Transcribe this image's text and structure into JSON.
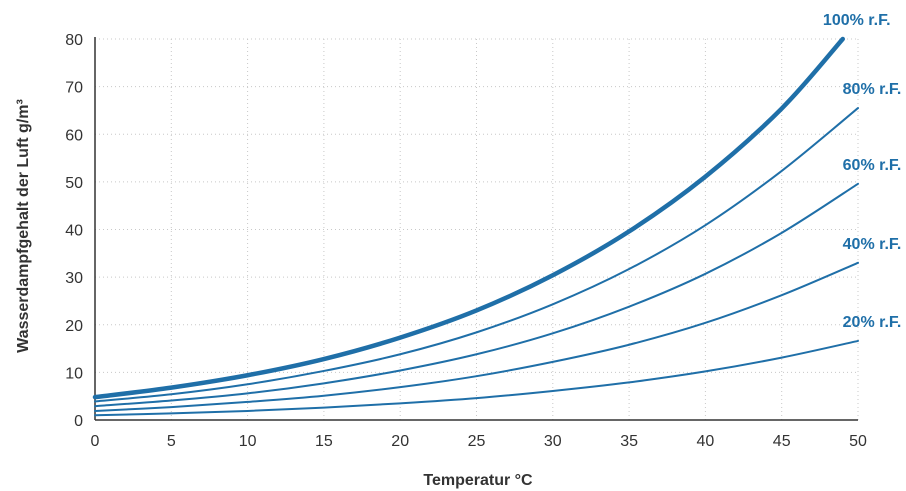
{
  "chart_data": {
    "type": "line",
    "title": "",
    "xlabel": "Temperatur °C",
    "ylabel": "Wasserdampfgehalt der Luft g/m³",
    "xlim": [
      0,
      50
    ],
    "ylim": [
      0,
      80
    ],
    "xticks": [
      0,
      5,
      10,
      15,
      20,
      25,
      30,
      35,
      40,
      45,
      50
    ],
    "yticks": [
      0,
      10,
      20,
      30,
      40,
      50,
      60,
      70,
      80
    ],
    "grid": true,
    "line_color": "#1f6fa8",
    "x": [
      0,
      5,
      10,
      15,
      20,
      25,
      30,
      35,
      40,
      45,
      49,
      50
    ],
    "series": [
      {
        "name": "100% r.F.",
        "values": [
          4.8,
          6.8,
          9.4,
          12.8,
          17.3,
          23.0,
          30.4,
          39.6,
          51.1,
          65.4,
          80.0,
          null
        ]
      },
      {
        "name": "80% r.F.",
        "values": [
          3.9,
          5.4,
          7.5,
          10.3,
          13.8,
          18.4,
          24.3,
          31.7,
          40.9,
          52.3,
          null,
          65.5
        ]
      },
      {
        "name": "60% r.F.",
        "values": [
          2.9,
          4.1,
          5.6,
          7.7,
          10.4,
          13.8,
          18.2,
          23.8,
          30.7,
          39.3,
          null,
          49.6
        ]
      },
      {
        "name": "40% r.F.",
        "values": [
          1.9,
          2.7,
          3.8,
          5.1,
          6.9,
          9.2,
          12.2,
          15.8,
          20.4,
          26.2,
          null,
          33.0
        ]
      },
      {
        "name": "20% r.F.",
        "values": [
          1.0,
          1.4,
          1.9,
          2.6,
          3.5,
          4.6,
          6.1,
          7.9,
          10.2,
          13.1,
          null,
          16.6
        ]
      }
    ]
  }
}
